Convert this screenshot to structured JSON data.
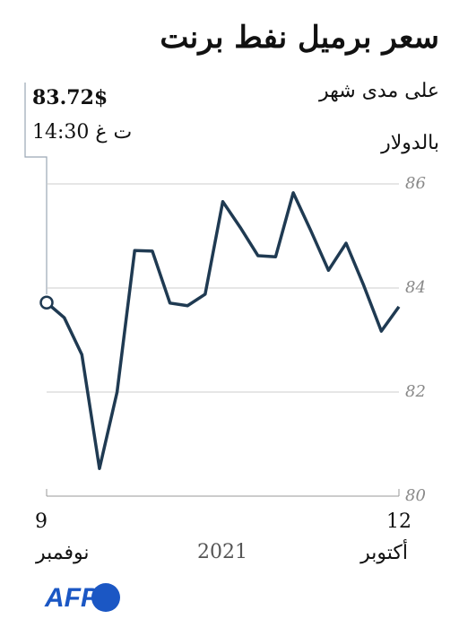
{
  "chart_data": {
    "type": "line",
    "title": "سعر برميل نفط برنت",
    "subtitle": "على مدى شهر",
    "y_axis_label": "بالدولار",
    "categories": [
      "9",
      null,
      null,
      null,
      null,
      null,
      null,
      null,
      null,
      null,
      null,
      null,
      null,
      null,
      null,
      null,
      null,
      null,
      null,
      null,
      "12"
    ],
    "x_month_labels": [
      "نوفمبر",
      "أكتوبر"
    ],
    "x_year_label": "2021",
    "series": [
      {
        "name": "برنت",
        "color": "#1f3a52",
        "values": [
          83.72,
          83.43,
          82.72,
          80.53,
          82.0,
          84.72,
          84.71,
          83.71,
          83.66,
          83.88,
          85.66,
          85.16,
          84.62,
          84.6,
          85.83,
          85.1,
          84.34,
          84.86,
          84.05,
          83.17,
          83.64
        ]
      }
    ],
    "ylim": [
      80,
      86
    ],
    "yticks": [
      80,
      82,
      84,
      86
    ],
    "grid": true,
    "callout": {
      "value": 83.72,
      "label": "83.72$",
      "time": "14:30 ت غ"
    },
    "source": "AFP"
  }
}
